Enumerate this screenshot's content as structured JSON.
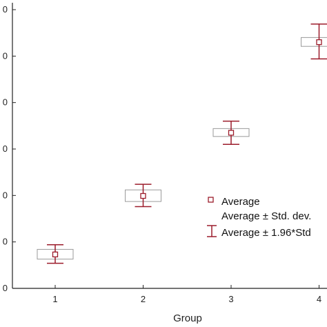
{
  "chart_data": {
    "type": "scatter",
    "title": "",
    "xlabel": "Group",
    "ylabel": "",
    "categories": [
      "1",
      "2",
      "3",
      "4"
    ],
    "y_tick_labels": [
      "0",
      "0",
      "0",
      "0",
      "0",
      "0",
      "0"
    ],
    "ylim": [
      0,
      6
    ],
    "grid": false,
    "legend_position": "right",
    "series": [
      {
        "name": "Average",
        "values": [
          0.73,
          1.99,
          3.35,
          5.3
        ],
        "std_low": [
          0.63,
          1.87,
          3.27,
          5.21
        ],
        "std_high": [
          0.84,
          2.12,
          3.44,
          5.4
        ],
        "ci_low": [
          0.54,
          1.76,
          3.1,
          4.94
        ],
        "ci_high": [
          0.94,
          2.24,
          3.6,
          5.69
        ]
      }
    ],
    "legend": {
      "average": "Average",
      "std": "Average ± Std. dev.",
      "ci": "Average ± 1.96*Std"
    },
    "colors": {
      "marker": "#9b1b2a",
      "std_box": "#9a9a9a",
      "axis": "#222222"
    }
  }
}
